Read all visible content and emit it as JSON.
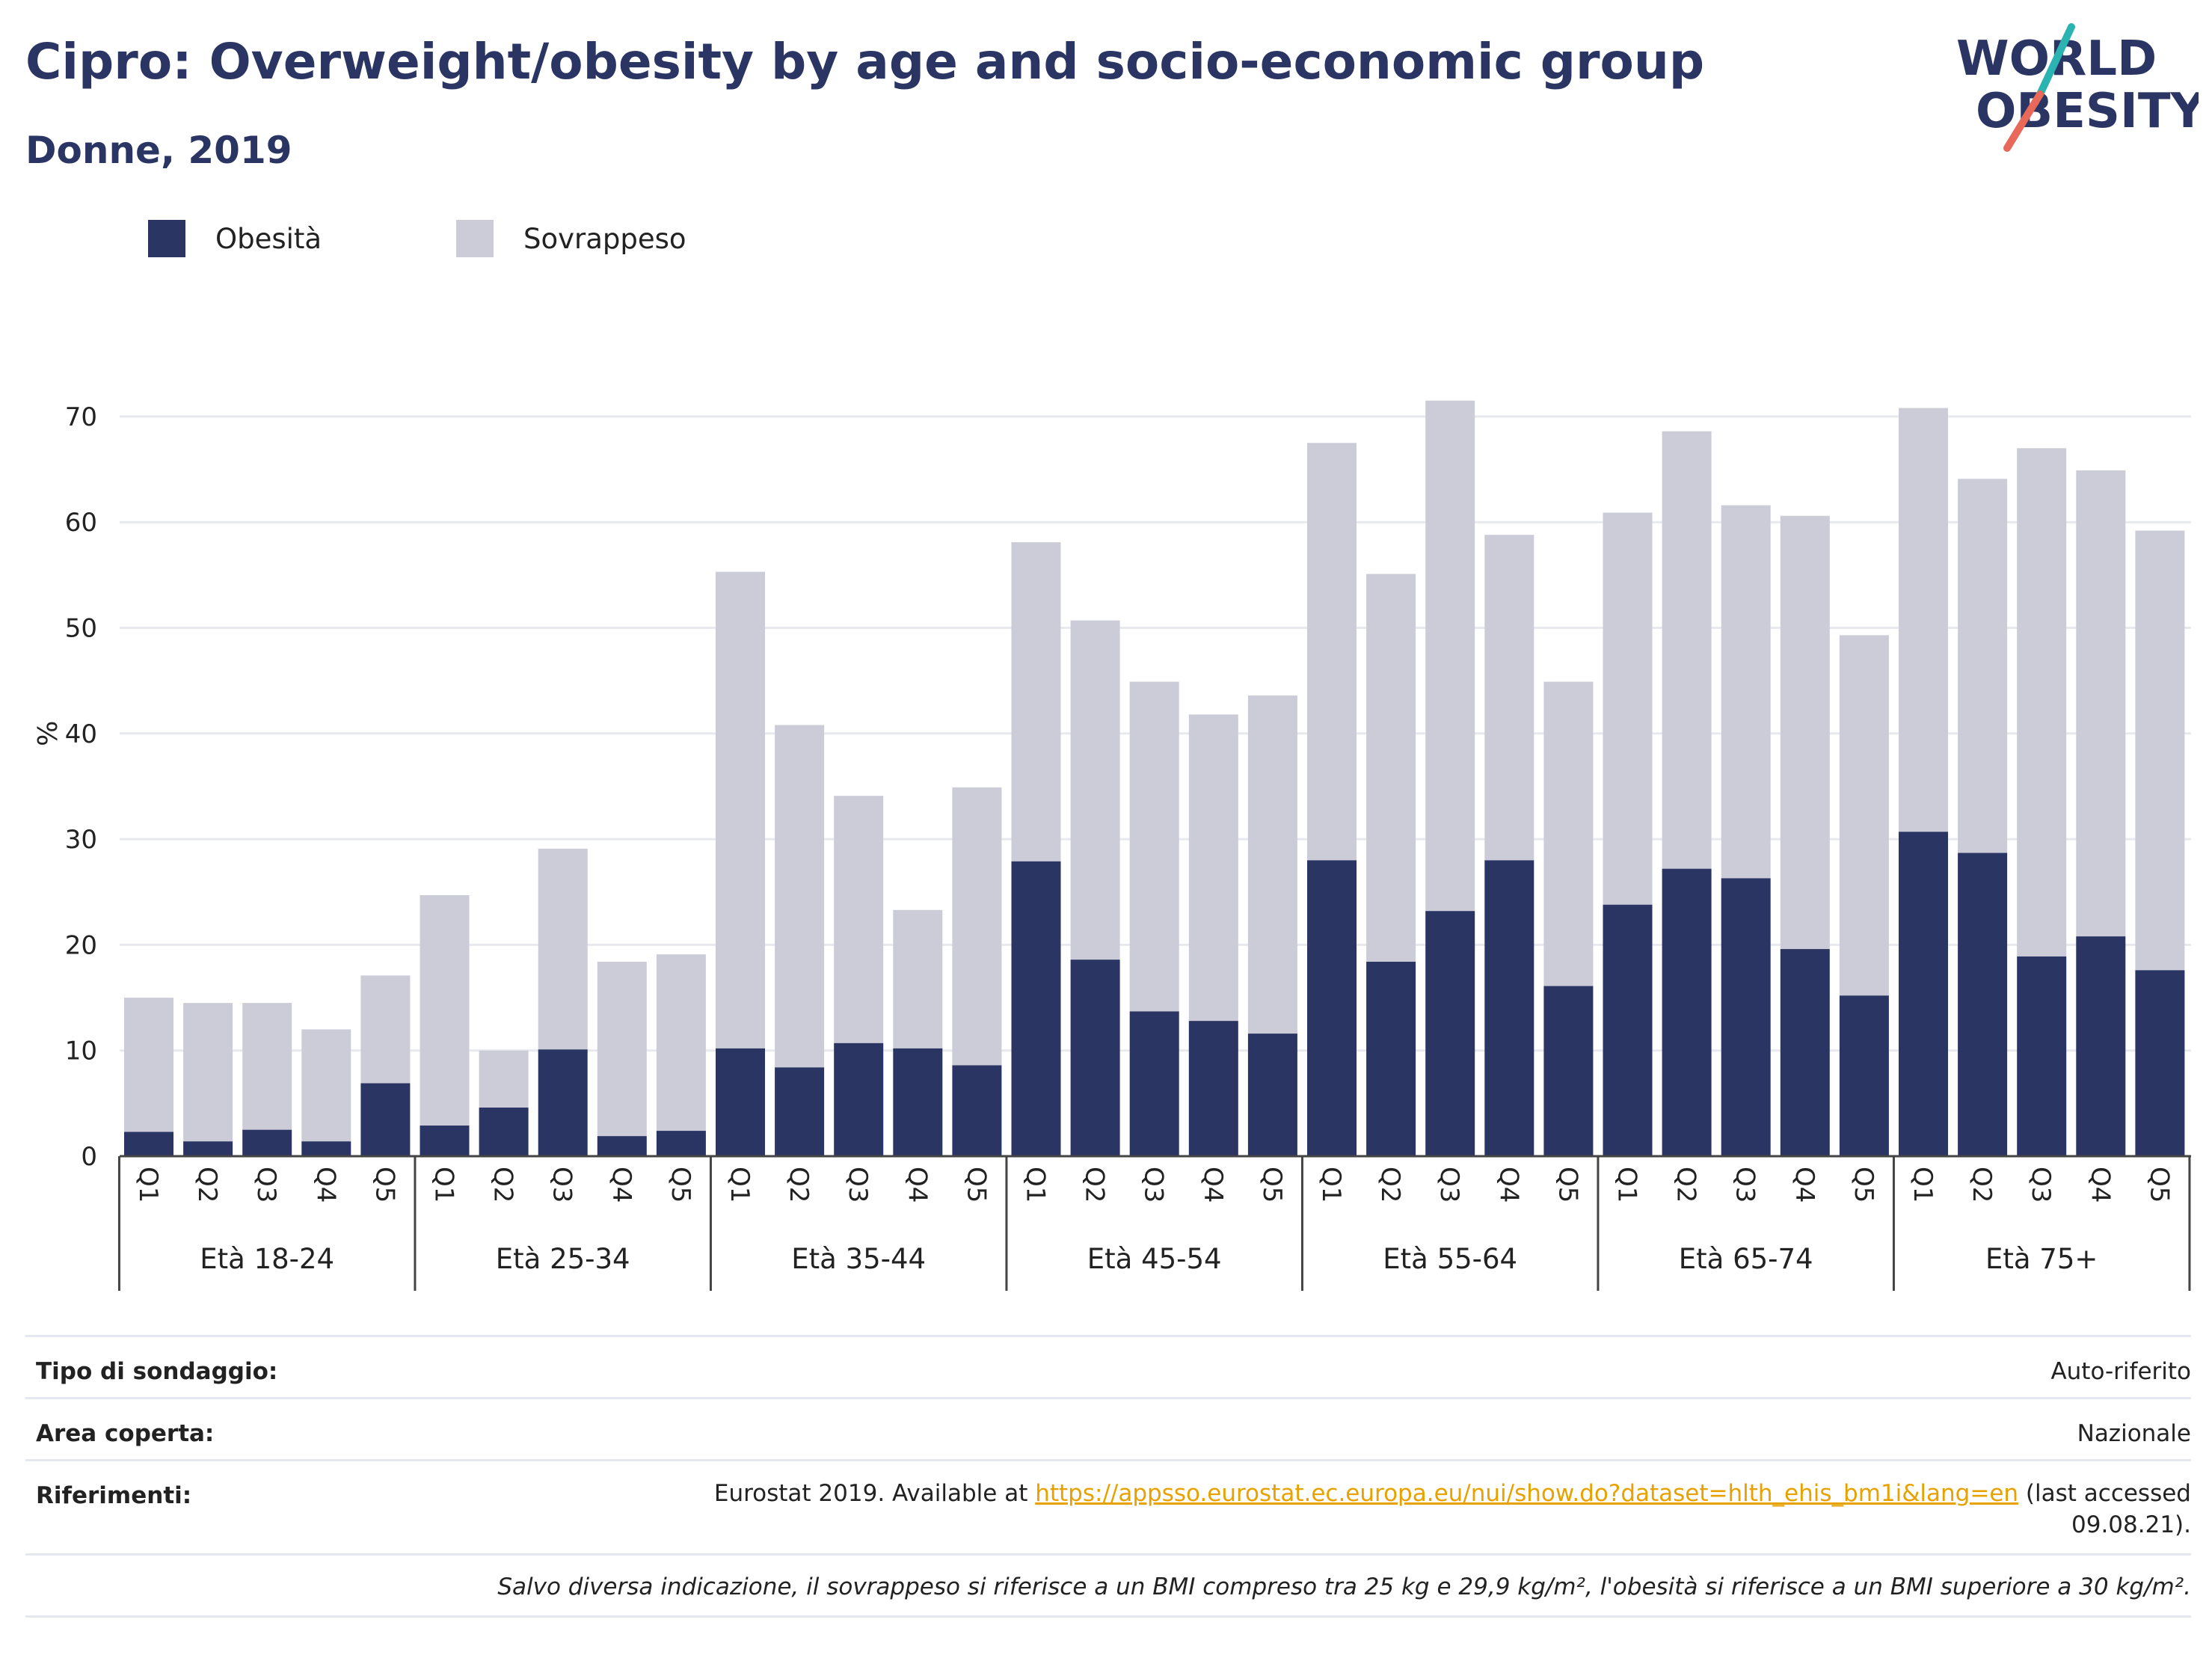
{
  "header": {
    "title": "Cipro: Overweight/obesity by age and socio-economic group",
    "subtitle": "Donne, 2019",
    "logo_line1": "WORLD",
    "logo_line2": "OBESITY"
  },
  "legend": {
    "obesity_label": "Obesità",
    "overweight_label": "Sovrappeso"
  },
  "colors": {
    "obesity": "#2b3563",
    "overweight": "#cbccd8",
    "link": "#e8a200",
    "logo_teal": "#2bb3b1",
    "logo_coral": "#e8685a"
  },
  "chart_data": {
    "type": "bar",
    "stacked": true,
    "ylabel": "%",
    "ylim": [
      0,
      75
    ],
    "yticks": [
      0,
      10,
      20,
      30,
      40,
      50,
      60,
      70
    ],
    "grid": true,
    "groups": [
      "Età 18-24",
      "Età 25-34",
      "Età 35-44",
      "Età 45-54",
      "Età 55-64",
      "Età 65-74",
      "Età 75+"
    ],
    "quintiles": [
      "Q1",
      "Q2",
      "Q3",
      "Q4",
      "Q5"
    ],
    "series": [
      {
        "name": "Obesità",
        "values": [
          2.3,
          1.4,
          2.5,
          1.4,
          6.9,
          2.9,
          4.6,
          10.1,
          1.9,
          2.4,
          10.2,
          8.4,
          10.7,
          10.2,
          8.6,
          27.9,
          18.6,
          13.7,
          12.8,
          11.6,
          28.0,
          18.4,
          23.2,
          28.0,
          16.1,
          23.8,
          27.2,
          26.3,
          19.6,
          15.2,
          30.7,
          28.7,
          18.9,
          20.8,
          17.6
        ]
      },
      {
        "name": "Sovrappeso",
        "values": [
          12.7,
          13.1,
          12.0,
          10.6,
          10.2,
          21.8,
          5.4,
          19.0,
          16.5,
          16.7,
          45.1,
          32.4,
          23.4,
          13.1,
          26.3,
          30.2,
          32.1,
          31.2,
          29.0,
          32.0,
          39.5,
          36.7,
          48.3,
          30.8,
          28.8,
          37.1,
          41.4,
          35.3,
          41.0,
          34.1,
          40.1,
          35.4,
          48.1,
          44.1,
          41.6
        ]
      }
    ]
  },
  "info": {
    "survey_type_label": "Tipo di sondaggio:",
    "survey_type_value": "Auto-riferito",
    "area_label": "Area coperta:",
    "area_value": "Nazionale",
    "references_label": "Riferimenti:",
    "references_prefix": "Eurostat 2019. Available at ",
    "references_link": "https://appsso.eurostat.ec.europa.eu/nui/show.do?dataset=hlth_ehis_bm1i&lang=en",
    "references_suffix_1": " (last accessed",
    "references_suffix_2": "09.08.21).",
    "note": "Salvo diversa indicazione, il sovrappeso si riferisce a un BMI compreso tra 25 kg e 29,9 kg/m², l'obesità si riferisce a un BMI superiore a 30 kg/m²."
  }
}
